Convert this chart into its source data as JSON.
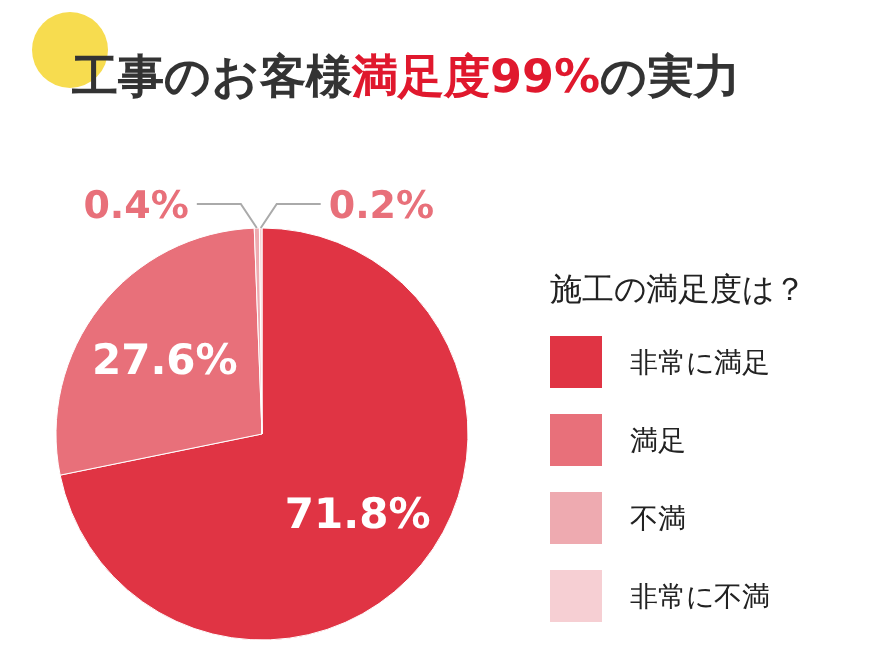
{
  "chart_data": {
    "type": "pie",
    "title": "工事のお客様**満足度99%**の実力",
    "legend_title": "施工の満足度は？",
    "categories": [
      "非常に満足",
      "満足",
      "不満",
      "非常に不満"
    ],
    "values": [
      71.8,
      27.6,
      0.4,
      0.2
    ],
    "value_labels": [
      "71.8%",
      "27.6%",
      "0.4%",
      "0.2%"
    ],
    "colors": [
      "#e03444",
      "#e8707a",
      "#eeaab0",
      "#f6cfd3"
    ],
    "legend": "right"
  }
}
